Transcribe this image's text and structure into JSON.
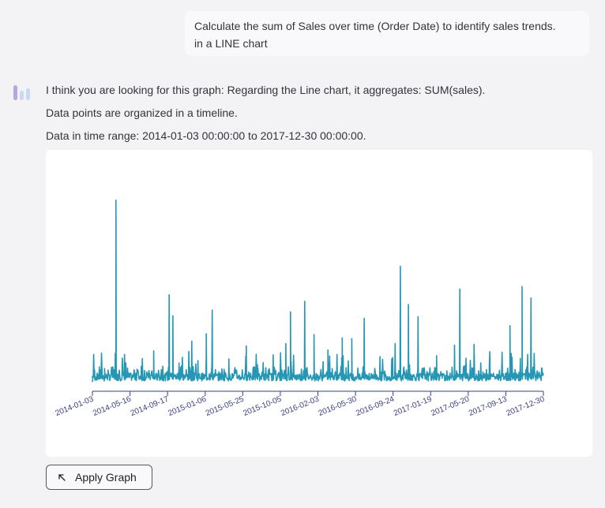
{
  "user_message": {
    "line1": "Calculate the sum of Sales over time (Order Date) to identify sales trends.",
    "line2": "in a LINE chart"
  },
  "assistant": {
    "avatar_icon": "bar-chart-logo-icon",
    "line1": "I think you are looking for this graph:  Regarding the Line chart,  it aggregates: SUM(sales).",
    "line2": "Data points are organized in a timeline.",
    "line3": "Data in time range: 2014-01-03 00:00:00 to 2017-12-30 00:00:00."
  },
  "chart_data": {
    "type": "line",
    "title": "",
    "xlabel": "",
    "ylabel": "",
    "series": [
      {
        "color": "#2596b3",
        "points": [
          [
            "2014-01-03",
            261.96
          ],
          [
            "2014-01-20",
            1200
          ],
          [
            "2014-02-10",
            400
          ],
          [
            "2014-03-18",
            3800
          ],
          [
            "2014-03-20",
            22638
          ],
          [
            "2014-04-15",
            1500
          ],
          [
            "2014-06-10",
            2200
          ],
          [
            "2014-07-20",
            4100
          ],
          [
            "2014-08-14",
            1800
          ],
          [
            "2014-09-08",
            11000
          ],
          [
            "2014-09-20",
            8400
          ],
          [
            "2014-10-10",
            2600
          ],
          [
            "2014-11-20",
            5300
          ],
          [
            "2014-12-10",
            2900
          ],
          [
            "2015-01-06",
            6200
          ],
          [
            "2015-01-25",
            9100
          ],
          [
            "2015-03-20",
            3100
          ],
          [
            "2015-05-15",
            4700
          ],
          [
            "2015-06-20",
            2400
          ],
          [
            "2015-08-10",
            3600
          ],
          [
            "2015-09-20",
            5000
          ],
          [
            "2015-10-05",
            8900
          ],
          [
            "2015-11-20",
            10200
          ],
          [
            "2015-12-20",
            6100
          ],
          [
            "2016-02-03",
            4200
          ],
          [
            "2016-03-20",
            5700
          ],
          [
            "2016-04-20",
            5600
          ],
          [
            "2016-05-30",
            8100
          ],
          [
            "2016-07-20",
            3400
          ],
          [
            "2016-09-07",
            5000
          ],
          [
            "2016-09-24",
            14500
          ],
          [
            "2016-10-20",
            9800
          ],
          [
            "2016-11-20",
            8300
          ],
          [
            "2017-01-19",
            3500
          ],
          [
            "2017-03-18",
            4800
          ],
          [
            "2017-04-04",
            11700
          ],
          [
            "2017-05-20",
            4900
          ],
          [
            "2017-07-10",
            4000
          ],
          [
            "2017-09-13",
            7200
          ],
          [
            "2017-10-22",
            12000
          ],
          [
            "2017-11-20",
            10600
          ],
          [
            "2017-12-30",
            3500
          ]
        ]
      }
    ],
    "x_ticks": [
      "2014-01-03",
      "2014-05-16",
      "2014-09-17",
      "2015-01-06",
      "2015-05-25",
      "2015-10-05",
      "2016-02-03",
      "2016-05-30",
      "2016-09-24",
      "2017-01-19",
      "2017-05-20",
      "2017-09-13",
      "2017-12-30"
    ],
    "x_range": [
      "2014-01-03",
      "2017-12-30"
    ],
    "y_range": [
      0,
      23000
    ],
    "grid": false,
    "y_axis_visible": false
  },
  "apply_button": {
    "label": "Apply Graph",
    "icon": "arrow-up-left-icon"
  }
}
